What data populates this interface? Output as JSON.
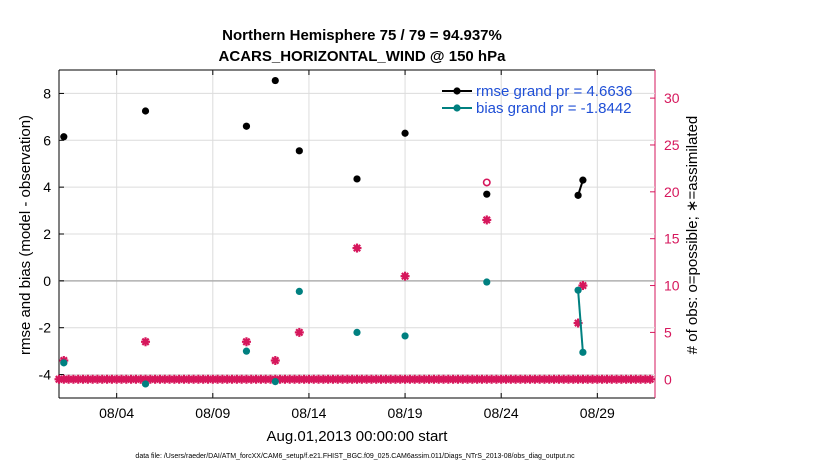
{
  "chart_data": {
    "type": "scatter",
    "title": "Northern Hemisphere 75 / 79 = 94.937%",
    "subtitle": "ACARS_HORIZONTAL_WIND @ 150 hPa",
    "xlabel": "Aug.01,2013 00:00:00 start",
    "ylabel_left": "rmse and bias (model - observation)",
    "ylabel_right": "# of obs: o=possible; ∗=assimilated",
    "footnote": "data file: /Users/raeder/DAI/ATM_forcXX/CAM6_setup/f.e21.FHIST_BGC.f09_025.CAM6assim.011/Diags_NTrS_2013-08/obs_diag_output.nc",
    "xlim": [
      1,
      32
    ],
    "ylim_left": [
      -5,
      9
    ],
    "ylim_right": [
      -2,
      33
    ],
    "x_ticks": [
      4,
      9,
      14,
      19,
      24,
      29
    ],
    "x_tick_labels": [
      "08/04",
      "08/09",
      "08/14",
      "08/19",
      "08/24",
      "08/29"
    ],
    "y_ticks_left": [
      -4,
      -2,
      0,
      2,
      4,
      6,
      8
    ],
    "y_ticks_right": [
      0,
      5,
      10,
      15,
      20,
      25,
      30
    ],
    "grid": true,
    "legend_position": "top-right",
    "colors": {
      "rmse": "#000000",
      "bias": "#008080",
      "obs": "#d6175c",
      "legend_text": "#1f4fd6",
      "zero_line": "#b0b0b0",
      "grid": "#dcdcdc"
    },
    "series": [
      {
        "name": "rmse grand pr = 4.6636",
        "axis": "left",
        "x": [
          1.25,
          5.5,
          10.75,
          12.25,
          13.5,
          16.5,
          19.0,
          23.25,
          28.0,
          28.25
        ],
        "y": [
          6.15,
          7.25,
          6.6,
          8.55,
          5.55,
          4.35,
          6.3,
          3.7,
          3.65,
          4.3
        ],
        "line_segments": [
          [
            28.0,
            28.25
          ]
        ]
      },
      {
        "name": "bias grand pr = -1.8442",
        "axis": "left",
        "x": [
          1.25,
          5.5,
          10.75,
          12.25,
          13.5,
          16.5,
          19.0,
          23.25,
          28.0,
          28.25
        ],
        "y": [
          -3.5,
          -4.4,
          -3.0,
          -4.3,
          -0.45,
          -2.2,
          -2.35,
          -0.05,
          -0.4,
          -3.05
        ],
        "line_segments": [
          [
            28.0,
            28.25
          ]
        ]
      },
      {
        "name": "obs possible",
        "axis": "right",
        "x": [
          23.25
        ],
        "y": [
          21
        ]
      },
      {
        "name": "obs assimilated",
        "axis": "right",
        "x": [
          1.25,
          5.5,
          10.75,
          12.25,
          13.5,
          16.5,
          19.0,
          23.25,
          28.0,
          28.25
        ],
        "y": [
          2,
          4,
          4,
          2,
          5,
          14,
          11,
          17,
          6,
          10
        ],
        "zero_band": [
          1.0,
          31.8,
          0.25
        ]
      }
    ]
  }
}
